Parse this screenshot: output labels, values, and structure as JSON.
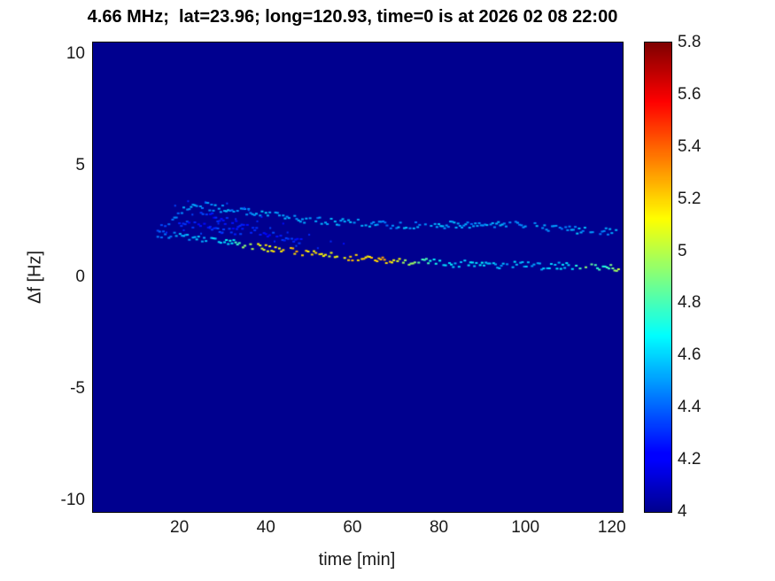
{
  "title": "4.66 MHz;  lat=23.96; long=120.93, time=0 is at 2026 02 08 22:00",
  "chart_data": {
    "type": "heatmap",
    "title": "4.66 MHz;  lat=23.96; long=120.93, time=0 is at 2026 02 08 22:00",
    "xlabel": "time [min]",
    "ylabel": "Δf [Hz]",
    "xlim": [
      0,
      122.5
    ],
    "ylim": [
      -10.5,
      10.5
    ],
    "xticks": [
      20,
      40,
      60,
      80,
      100,
      120
    ],
    "yticks": [
      -10,
      -5,
      0,
      5,
      10
    ],
    "grid": false,
    "colorbar": {
      "min": 4,
      "max": 5.8,
      "ticks": [
        4,
        4.2,
        4.4,
        4.6,
        4.8,
        5,
        5.2,
        5.4,
        5.6,
        5.8
      ],
      "colormap": "jet",
      "position": "right"
    },
    "background_value": 4,
    "series": [
      {
        "name": "upper-ridge",
        "draw": "dash",
        "points": [
          [
            15,
            2.1,
            4.35
          ],
          [
            18,
            2.6,
            4.4
          ],
          [
            21,
            3.1,
            4.45
          ],
          [
            24,
            3.3,
            4.5
          ],
          [
            27,
            3.15,
            4.45
          ],
          [
            30,
            3.05,
            4.5
          ],
          [
            33,
            2.95,
            4.45
          ],
          [
            36,
            2.9,
            4.5
          ],
          [
            40,
            2.85,
            4.55
          ],
          [
            44,
            2.7,
            4.5
          ],
          [
            48,
            2.6,
            4.5
          ],
          [
            52,
            2.55,
            4.45
          ],
          [
            56,
            2.5,
            4.5
          ],
          [
            60,
            2.45,
            4.5
          ],
          [
            64,
            2.4,
            4.5
          ],
          [
            68,
            2.35,
            4.45
          ],
          [
            72,
            2.3,
            4.5
          ],
          [
            76,
            2.3,
            4.45
          ],
          [
            80,
            2.3,
            4.5
          ],
          [
            84,
            2.35,
            4.5
          ],
          [
            88,
            2.3,
            4.45
          ],
          [
            92,
            2.35,
            4.5
          ],
          [
            96,
            2.4,
            4.5
          ],
          [
            100,
            2.35,
            4.45
          ],
          [
            104,
            2.2,
            4.5
          ],
          [
            108,
            2.15,
            4.45
          ],
          [
            112,
            2.1,
            4.5
          ],
          [
            116,
            2.1,
            4.45
          ],
          [
            120,
            2.05,
            4.5
          ],
          [
            122,
            2.0,
            4.45
          ]
        ]
      },
      {
        "name": "lower-ridge",
        "draw": "dash",
        "points": [
          [
            15,
            1.95,
            4.4
          ],
          [
            18,
            1.85,
            4.45
          ],
          [
            21,
            1.8,
            4.5
          ],
          [
            24,
            1.75,
            4.5
          ],
          [
            27,
            1.7,
            4.55
          ],
          [
            30,
            1.65,
            4.6
          ],
          [
            33,
            1.55,
            4.7
          ],
          [
            36,
            1.45,
            5.0
          ],
          [
            40,
            1.3,
            5.1
          ],
          [
            44,
            1.2,
            5.15
          ],
          [
            48,
            1.1,
            5.2
          ],
          [
            52,
            1.0,
            5.1
          ],
          [
            56,
            0.95,
            5.05
          ],
          [
            60,
            0.9,
            5.2
          ],
          [
            64,
            0.85,
            5.15
          ],
          [
            67,
            0.8,
            5.25
          ],
          [
            70,
            0.75,
            5.1
          ],
          [
            74,
            0.7,
            4.9
          ],
          [
            78,
            0.65,
            4.7
          ],
          [
            82,
            0.6,
            4.6
          ],
          [
            86,
            0.6,
            4.55
          ],
          [
            90,
            0.6,
            4.6
          ],
          [
            94,
            0.55,
            4.5
          ],
          [
            98,
            0.55,
            4.55
          ],
          [
            102,
            0.5,
            4.5
          ],
          [
            106,
            0.5,
            4.55
          ],
          [
            110,
            0.5,
            4.6
          ],
          [
            114,
            0.45,
            4.85
          ],
          [
            118,
            0.45,
            4.7
          ],
          [
            122,
            0.4,
            5.0
          ]
        ]
      },
      {
        "name": "faint-branch-a",
        "draw": "dash",
        "points": [
          [
            25,
            2.9,
            4.3
          ],
          [
            28,
            2.7,
            4.25
          ],
          [
            31,
            2.5,
            4.3
          ],
          [
            34,
            2.3,
            4.25
          ],
          [
            37,
            2.1,
            4.3
          ],
          [
            40,
            1.95,
            4.25
          ],
          [
            43,
            1.8,
            4.3
          ],
          [
            46,
            1.7,
            4.25
          ],
          [
            49,
            1.6,
            4.3
          ]
        ]
      },
      {
        "name": "faint-branch-b",
        "draw": "dash",
        "points": [
          [
            20,
            2.45,
            4.3
          ],
          [
            24,
            2.3,
            4.25
          ],
          [
            28,
            2.15,
            4.3
          ],
          [
            32,
            2.05,
            4.25
          ],
          [
            35,
            2.0,
            4.3
          ]
        ]
      },
      {
        "name": "speckles",
        "draw": "dots",
        "points": [
          [
            17,
            2.0,
            4.3
          ],
          [
            19,
            3.2,
            4.35
          ],
          [
            22,
            3.4,
            4.3
          ],
          [
            23,
            2.8,
            4.35
          ],
          [
            26,
            3.35,
            4.4
          ],
          [
            29,
            2.4,
            4.3
          ],
          [
            31,
            3.3,
            4.35
          ],
          [
            33,
            2.6,
            4.3
          ],
          [
            35,
            3.1,
            4.35
          ],
          [
            38,
            2.5,
            4.3
          ],
          [
            41,
            2.2,
            4.35
          ],
          [
            45,
            2.0,
            4.3
          ],
          [
            50,
            1.9,
            4.3
          ],
          [
            55,
            1.6,
            4.3
          ],
          [
            36,
            3.0,
            4.4
          ],
          [
            27,
            2.2,
            4.3
          ],
          [
            30,
            2.0,
            4.35
          ],
          [
            42,
            1.6,
            4.3
          ],
          [
            47,
            1.4,
            4.35
          ],
          [
            52,
            1.3,
            4.3
          ],
          [
            21,
            2.1,
            4.3
          ],
          [
            25,
            1.95,
            4.35
          ],
          [
            39,
            2.7,
            4.3
          ],
          [
            44,
            2.4,
            4.25
          ],
          [
            58,
            1.5,
            4.25
          ]
        ]
      }
    ]
  }
}
